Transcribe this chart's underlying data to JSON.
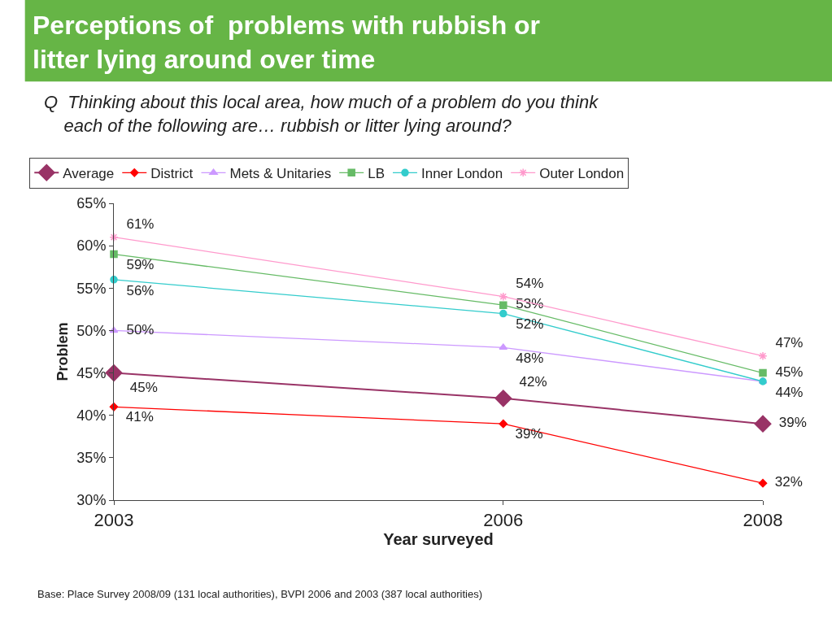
{
  "chart_data": {
    "type": "line",
    "title": "Perceptions of  problems with rubbish or litter lying around over time",
    "subtitle": "Q  Thinking about this local area, how much of a problem do you think each of the following are… rubbish or litter lying around?",
    "xlabel": "Year surveyed",
    "ylabel": "Problem",
    "x": [
      2003,
      2006,
      2008
    ],
    "xlim": [
      2003,
      2008
    ],
    "xticks": [
      2003,
      2006,
      2008
    ],
    "ylim": [
      30,
      65
    ],
    "yticks": [
      {
        "value": 30,
        "label": "30%"
      },
      {
        "value": 35,
        "label": "35%"
      },
      {
        "value": 40,
        "label": "40%"
      },
      {
        "value": 45,
        "label": "45%"
      },
      {
        "value": 50,
        "label": "50%"
      },
      {
        "value": 55,
        "label": "55%"
      },
      {
        "value": 60,
        "label": "60%"
      },
      {
        "value": 65,
        "label": "65%"
      }
    ],
    "series": [
      {
        "name": "Average",
        "color": "#993366",
        "marker": "diamond",
        "values": [
          45,
          42,
          39
        ],
        "value_labels": [
          "45%",
          "42%",
          "39%"
        ]
      },
      {
        "name": "District",
        "color": "#ff0000",
        "marker": "diamond",
        "values": [
          41,
          39,
          32
        ],
        "value_labels": [
          "41%",
          "39%",
          "32%"
        ]
      },
      {
        "name": "Mets & Unitaries",
        "color": "#cc99ff",
        "marker": "triangle",
        "values": [
          50,
          48,
          44
        ],
        "value_labels": [
          "50%",
          "48%",
          null
        ]
      },
      {
        "name": "LB",
        "color": "#66bb66",
        "marker": "square",
        "values": [
          59,
          53,
          45
        ],
        "value_labels": [
          "59%",
          "53%",
          "45%"
        ]
      },
      {
        "name": "Inner London",
        "color": "#33cccc",
        "marker": "circle",
        "values": [
          56,
          52,
          44
        ],
        "value_labels": [
          "56%",
          "52%",
          "44%"
        ]
      },
      {
        "name": "Outer London",
        "color": "#ff99cc",
        "marker": "cross",
        "values": [
          61,
          54,
          47
        ],
        "value_labels": [
          "61%",
          "54%",
          "47%"
        ]
      }
    ],
    "legend": "top",
    "annotations": [
      "Base: Place Survey 2008/09 (131 local authorities), BVPI 2006 and 2003 (387 local authorities)"
    ]
  }
}
